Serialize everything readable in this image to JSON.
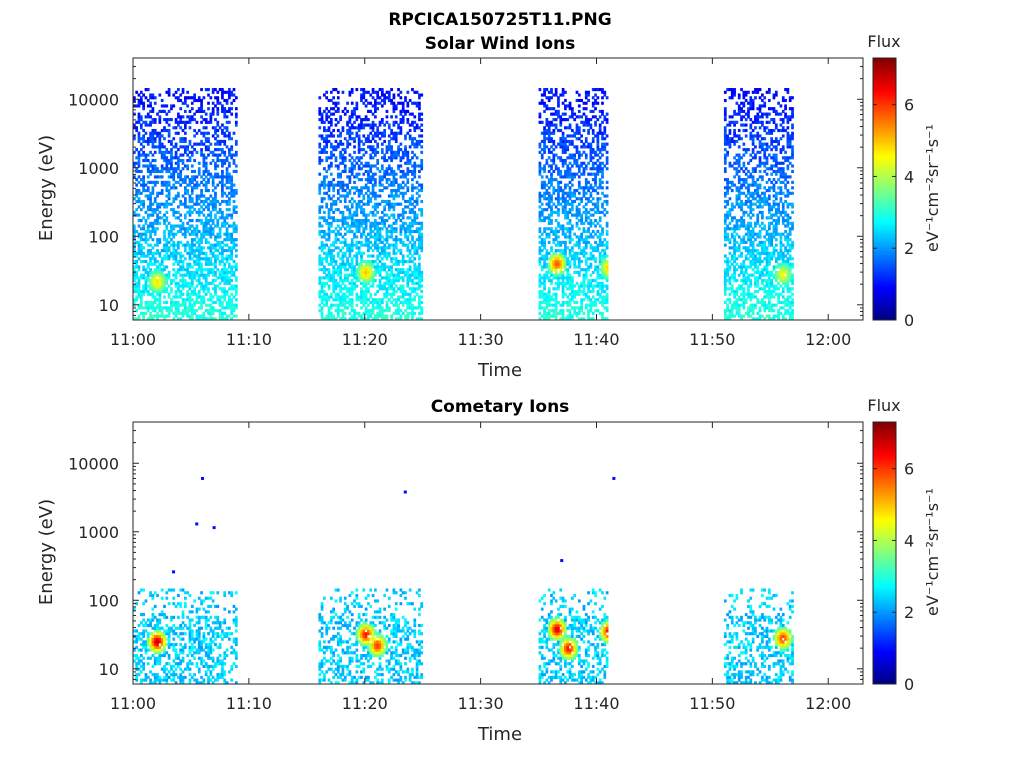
{
  "figure_title": "RPCICA150725T11.PNG",
  "chart_data": [
    {
      "type": "heatmap",
      "title": "Solar Wind Ions",
      "xlabel": "Time",
      "ylabel": "Energy (eV)",
      "y_scale": "log",
      "ylim": [
        6,
        40000
      ],
      "xlim": [
        "11:00",
        "12:03"
      ],
      "x_ticks": [
        "11:00",
        "11:10",
        "11:20",
        "11:30",
        "11:40",
        "11:50",
        "12:00"
      ],
      "y_ticks": [
        "10",
        "100",
        "1000",
        "10000"
      ],
      "colorbar": {
        "label": "Flux",
        "unit": "eV⁻¹cm⁻²sr⁻¹s⁻¹",
        "range": [
          0,
          7.3
        ],
        "ticks": [
          "0",
          "2",
          "4",
          "6"
        ],
        "colormap": "jet"
      },
      "blocks": [
        {
          "start": "11:00",
          "end": "11:09",
          "max_energy_eV": 14000,
          "peaks": [
            {
              "time": "11:02",
              "energy_eV": 22,
              "flux": 4.8
            }
          ]
        },
        {
          "start": "11:16",
          "end": "11:25",
          "max_energy_eV": 14000,
          "peaks": [
            {
              "time": "11:20",
              "energy_eV": 30,
              "flux": 5.0
            }
          ]
        },
        {
          "start": "11:35",
          "end": "11:41",
          "max_energy_eV": 14000,
          "peaks": [
            {
              "time": "11:36.5",
              "energy_eV": 40,
              "flux": 5.8
            },
            {
              "time": "11:41",
              "energy_eV": 35,
              "flux": 5.0
            }
          ]
        },
        {
          "start": "11:51",
          "end": "11:57",
          "max_energy_eV": 14000,
          "peaks": [
            {
              "time": "11:56",
              "energy_eV": 28,
              "flux": 4.5
            }
          ]
        }
      ]
    },
    {
      "type": "heatmap",
      "title": "Cometary Ions",
      "xlabel": "Time",
      "ylabel": "Energy (eV)",
      "y_scale": "log",
      "ylim": [
        6,
        40000
      ],
      "xlim": [
        "11:00",
        "12:03"
      ],
      "x_ticks": [
        "11:00",
        "11:10",
        "11:20",
        "11:30",
        "11:40",
        "11:50",
        "12:00"
      ],
      "y_ticks": [
        "10",
        "100",
        "1000",
        "10000"
      ],
      "colorbar": {
        "label": "Flux",
        "unit": "eV⁻¹cm⁻²sr⁻¹s⁻¹",
        "range": [
          0,
          7.3
        ],
        "ticks": [
          "0",
          "2",
          "4",
          "6"
        ],
        "colormap": "jet"
      },
      "blocks": [
        {
          "start": "11:00",
          "end": "11:09",
          "max_energy_eV": 150,
          "peaks": [
            {
              "time": "11:02",
              "energy_eV": 25,
              "flux": 6.8
            }
          ]
        },
        {
          "start": "11:16",
          "end": "11:25",
          "max_energy_eV": 150,
          "peaks": [
            {
              "time": "11:20",
              "energy_eV": 32,
              "flux": 6.3
            },
            {
              "time": "11:21",
              "energy_eV": 22,
              "flux": 6.0
            }
          ]
        },
        {
          "start": "11:35",
          "end": "11:41",
          "max_energy_eV": 150,
          "peaks": [
            {
              "time": "11:36.5",
              "energy_eV": 38,
              "flux": 6.6
            },
            {
              "time": "11:37.5",
              "energy_eV": 20,
              "flux": 6.3
            },
            {
              "time": "11:41",
              "energy_eV": 35,
              "flux": 6.5
            }
          ]
        },
        {
          "start": "11:51",
          "end": "11:57",
          "max_energy_eV": 150,
          "peaks": [
            {
              "time": "11:56",
              "energy_eV": 28,
              "flux": 6.0
            }
          ]
        }
      ],
      "isolated_points": [
        {
          "time": "11:06",
          "energy_eV": 6000
        },
        {
          "time": "11:05.5",
          "energy_eV": 1300
        },
        {
          "time": "11:07",
          "energy_eV": 1150
        },
        {
          "time": "11:23.5",
          "energy_eV": 3800
        },
        {
          "time": "11:41.5",
          "energy_eV": 6000
        },
        {
          "time": "11:37",
          "energy_eV": 380
        },
        {
          "time": "11:03.5",
          "energy_eV": 260
        }
      ]
    }
  ],
  "colors": {
    "frame": "#262626",
    "background": "#ffffff"
  }
}
